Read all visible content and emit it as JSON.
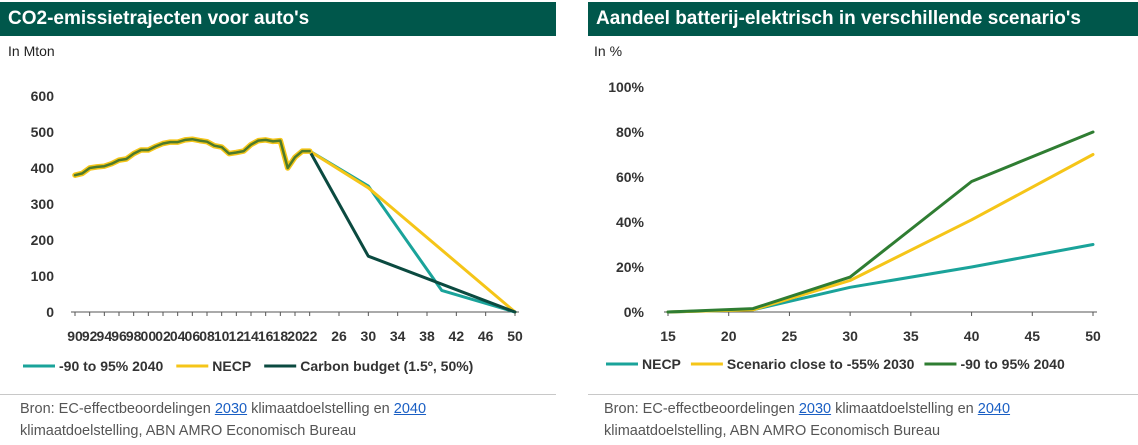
{
  "left": {
    "title": "CO2-emissietrajecten voor auto's",
    "unit": "In Mton",
    "source": {
      "prefix": "Bron: EC-effectbeoordelingen ",
      "link1": "2030",
      "middle": " klimaatdoelstelling en ",
      "link2": "2040",
      "suffix": " klimaatdoelstelling, ABN AMRO Economisch Bureau"
    }
  },
  "right": {
    "title": "Aandeel batterij-elektrisch in verschillende scenario's",
    "unit": "In %",
    "source": {
      "prefix": "Bron: EC-effectbeoordelingen ",
      "link1": "2030",
      "middle": " klimaatdoelstelling en ",
      "link2": "2040",
      "suffix": " klimaatdoelstelling, ABN AMRO Economisch Bureau"
    }
  },
  "chart_data": [
    {
      "type": "line",
      "title": "CO2-emissietrajecten voor auto's",
      "ylabel": "In Mton",
      "xlim": [
        1990,
        2050
      ],
      "ylim": [
        0,
        600
      ],
      "yticks": [
        0,
        100,
        200,
        300,
        400,
        500,
        600
      ],
      "yticklabels": [
        "0",
        "100",
        "200",
        "300",
        "400",
        "500",
        "600"
      ],
      "xticks": [
        1990,
        1992,
        1994,
        1996,
        1998,
        2000,
        2002,
        2004,
        2006,
        2008,
        2010,
        2012,
        2014,
        2016,
        2018,
        2020,
        2022,
        2026,
        2030,
        2034,
        2038,
        2042,
        2046,
        2050
      ],
      "xticklabels": [
        "90",
        "92",
        "94",
        "96",
        "98",
        "00",
        "02",
        "04",
        "06",
        "08",
        "10",
        "12",
        "14",
        "16",
        "18",
        "20",
        "22",
        "26",
        "30",
        "34",
        "38",
        "42",
        "46",
        "50"
      ],
      "legend_position": "bottom",
      "historical": {
        "color": "#4d7a2a",
        "x": [
          1990,
          1991,
          1992,
          1993,
          1994,
          1995,
          1996,
          1997,
          1998,
          1999,
          2000,
          2001,
          2002,
          2003,
          2004,
          2005,
          2006,
          2007,
          2008,
          2009,
          2010,
          2011,
          2012,
          2013,
          2014,
          2015,
          2016,
          2017,
          2018,
          2019,
          2020,
          2021,
          2022
        ],
        "y": [
          380,
          385,
          400,
          403,
          405,
          412,
          422,
          425,
          440,
          450,
          450,
          460,
          468,
          472,
          472,
          478,
          480,
          476,
          473,
          462,
          458,
          440,
          443,
          447,
          465,
          476,
          478,
          474,
          476,
          400,
          430,
          447,
          447
        ]
      },
      "series": [
        {
          "name": "-90 to 95% 2040",
          "color": "#1aa39a",
          "x": [
            2022,
            2030,
            2040,
            2050
          ],
          "y": [
            447,
            350,
            60,
            0
          ]
        },
        {
          "name": "NECP",
          "color": "#f5c518",
          "x": [
            2022,
            2030,
            2050
          ],
          "y": [
            447,
            345,
            0
          ]
        },
        {
          "name": "Carbon budget (1.5º, 50%)",
          "color": "#0b4a40",
          "x": [
            2022,
            2030,
            2050
          ],
          "y": [
            447,
            155,
            0
          ]
        }
      ]
    },
    {
      "type": "line",
      "title": "Aandeel batterij-elektrisch in verschillende scenario's",
      "ylabel": "In %",
      "xlim": [
        2015,
        2050
      ],
      "ylim": [
        0,
        100
      ],
      "yticks": [
        0,
        20,
        40,
        60,
        80,
        100
      ],
      "yticklabels": [
        "0%",
        "20%",
        "40%",
        "60%",
        "80%",
        "100%"
      ],
      "xticks": [
        2015,
        2020,
        2025,
        2030,
        2035,
        2040,
        2045,
        2050
      ],
      "xticklabels": [
        "15",
        "20",
        "25",
        "30",
        "35",
        "40",
        "45",
        "50"
      ],
      "legend_position": "bottom",
      "series": [
        {
          "name": "NECP",
          "color": "#1aa39a",
          "x": [
            2015,
            2022,
            2030,
            2040,
            2050
          ],
          "y": [
            0,
            1,
            11,
            20,
            30
          ]
        },
        {
          "name": "Scenario close to -55% 2030",
          "color": "#f5c518",
          "x": [
            2015,
            2022,
            2030,
            2040,
            2050
          ],
          "y": [
            0,
            1,
            14,
            41,
            70
          ]
        },
        {
          "name": "-90 to 95% 2040",
          "color": "#2f7d32",
          "x": [
            2015,
            2022,
            2030,
            2040,
            2050
          ],
          "y": [
            0,
            1.5,
            15.5,
            58,
            80
          ]
        }
      ]
    }
  ]
}
